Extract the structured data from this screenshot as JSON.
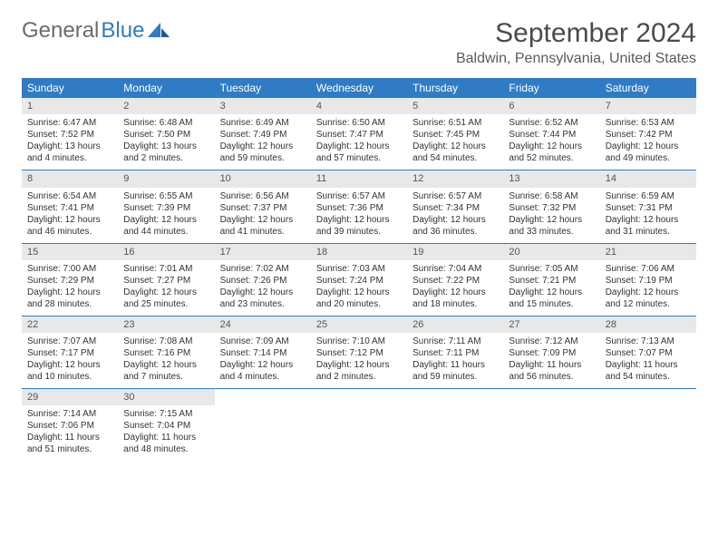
{
  "logo": {
    "text1": "General",
    "text2": "Blue"
  },
  "title": "September 2024",
  "location": "Baldwin, Pennsylvania, United States",
  "dayNames": [
    "Sunday",
    "Monday",
    "Tuesday",
    "Wednesday",
    "Thursday",
    "Friday",
    "Saturday"
  ],
  "colors": {
    "headerBg": "#2f7cc4",
    "headerText": "#ffffff",
    "dayNumBg": "#e8e8e8",
    "ruleColor": "#2f7cc4"
  },
  "days": [
    {
      "n": 1,
      "sunrise": "6:47 AM",
      "sunset": "7:52 PM",
      "dl": "13 hours and 4 minutes."
    },
    {
      "n": 2,
      "sunrise": "6:48 AM",
      "sunset": "7:50 PM",
      "dl": "13 hours and 2 minutes."
    },
    {
      "n": 3,
      "sunrise": "6:49 AM",
      "sunset": "7:49 PM",
      "dl": "12 hours and 59 minutes."
    },
    {
      "n": 4,
      "sunrise": "6:50 AM",
      "sunset": "7:47 PM",
      "dl": "12 hours and 57 minutes."
    },
    {
      "n": 5,
      "sunrise": "6:51 AM",
      "sunset": "7:45 PM",
      "dl": "12 hours and 54 minutes."
    },
    {
      "n": 6,
      "sunrise": "6:52 AM",
      "sunset": "7:44 PM",
      "dl": "12 hours and 52 minutes."
    },
    {
      "n": 7,
      "sunrise": "6:53 AM",
      "sunset": "7:42 PM",
      "dl": "12 hours and 49 minutes."
    },
    {
      "n": 8,
      "sunrise": "6:54 AM",
      "sunset": "7:41 PM",
      "dl": "12 hours and 46 minutes."
    },
    {
      "n": 9,
      "sunrise": "6:55 AM",
      "sunset": "7:39 PM",
      "dl": "12 hours and 44 minutes."
    },
    {
      "n": 10,
      "sunrise": "6:56 AM",
      "sunset": "7:37 PM",
      "dl": "12 hours and 41 minutes."
    },
    {
      "n": 11,
      "sunrise": "6:57 AM",
      "sunset": "7:36 PM",
      "dl": "12 hours and 39 minutes."
    },
    {
      "n": 12,
      "sunrise": "6:57 AM",
      "sunset": "7:34 PM",
      "dl": "12 hours and 36 minutes."
    },
    {
      "n": 13,
      "sunrise": "6:58 AM",
      "sunset": "7:32 PM",
      "dl": "12 hours and 33 minutes."
    },
    {
      "n": 14,
      "sunrise": "6:59 AM",
      "sunset": "7:31 PM",
      "dl": "12 hours and 31 minutes."
    },
    {
      "n": 15,
      "sunrise": "7:00 AM",
      "sunset": "7:29 PM",
      "dl": "12 hours and 28 minutes."
    },
    {
      "n": 16,
      "sunrise": "7:01 AM",
      "sunset": "7:27 PM",
      "dl": "12 hours and 25 minutes."
    },
    {
      "n": 17,
      "sunrise": "7:02 AM",
      "sunset": "7:26 PM",
      "dl": "12 hours and 23 minutes."
    },
    {
      "n": 18,
      "sunrise": "7:03 AM",
      "sunset": "7:24 PM",
      "dl": "12 hours and 20 minutes."
    },
    {
      "n": 19,
      "sunrise": "7:04 AM",
      "sunset": "7:22 PM",
      "dl": "12 hours and 18 minutes."
    },
    {
      "n": 20,
      "sunrise": "7:05 AM",
      "sunset": "7:21 PM",
      "dl": "12 hours and 15 minutes."
    },
    {
      "n": 21,
      "sunrise": "7:06 AM",
      "sunset": "7:19 PM",
      "dl": "12 hours and 12 minutes."
    },
    {
      "n": 22,
      "sunrise": "7:07 AM",
      "sunset": "7:17 PM",
      "dl": "12 hours and 10 minutes."
    },
    {
      "n": 23,
      "sunrise": "7:08 AM",
      "sunset": "7:16 PM",
      "dl": "12 hours and 7 minutes."
    },
    {
      "n": 24,
      "sunrise": "7:09 AM",
      "sunset": "7:14 PM",
      "dl": "12 hours and 4 minutes."
    },
    {
      "n": 25,
      "sunrise": "7:10 AM",
      "sunset": "7:12 PM",
      "dl": "12 hours and 2 minutes."
    },
    {
      "n": 26,
      "sunrise": "7:11 AM",
      "sunset": "7:11 PM",
      "dl": "11 hours and 59 minutes."
    },
    {
      "n": 27,
      "sunrise": "7:12 AM",
      "sunset": "7:09 PM",
      "dl": "11 hours and 56 minutes."
    },
    {
      "n": 28,
      "sunrise": "7:13 AM",
      "sunset": "7:07 PM",
      "dl": "11 hours and 54 minutes."
    },
    {
      "n": 29,
      "sunrise": "7:14 AM",
      "sunset": "7:06 PM",
      "dl": "11 hours and 51 minutes."
    },
    {
      "n": 30,
      "sunrise": "7:15 AM",
      "sunset": "7:04 PM",
      "dl": "11 hours and 48 minutes."
    }
  ],
  "labels": {
    "sunrise": "Sunrise:",
    "sunset": "Sunset:",
    "daylight": "Daylight:"
  }
}
